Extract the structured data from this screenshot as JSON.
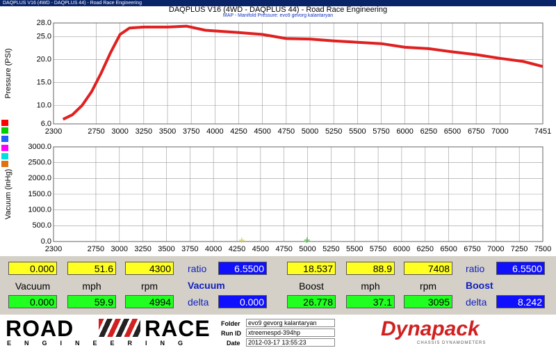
{
  "window_title": "DAQPLUS V16 (4WD - DAQPLUS 44) - Road Race Engineering",
  "chart_data": [
    {
      "type": "line",
      "title": "DAQPLUS V16 (4WD - DAQPLUS 44) - Road Race Engineering",
      "subtitle": "MAP - Manifold Pressure: evo9 gevorg kalantaryan",
      "y_label": "Pressure (PSI)",
      "x": [
        2400,
        2500,
        2600,
        2700,
        2800,
        2900,
        3000,
        3100,
        3250,
        3500,
        3700,
        3900,
        4250,
        4500,
        4750,
        5000,
        5250,
        5500,
        5750,
        6000,
        6250,
        6500,
        6750,
        7000,
        7250,
        7451
      ],
      "series": [
        {
          "color": "#e02020",
          "values": [
            7.0,
            8.0,
            10.0,
            13.0,
            17.0,
            21.5,
            25.5,
            26.9,
            27.1,
            27.1,
            27.3,
            26.4,
            25.9,
            25.5,
            24.6,
            24.5,
            24.1,
            23.8,
            23.5,
            22.7,
            22.4,
            21.7,
            21.1,
            20.3,
            19.6,
            18.5
          ]
        }
      ],
      "xlim": [
        2300,
        7451
      ],
      "xticks": [
        2300,
        2750,
        3000,
        3250,
        3500,
        3750,
        4000,
        4250,
        4500,
        4750,
        5000,
        5250,
        5500,
        5750,
        6000,
        6250,
        6500,
        6750,
        7000,
        7451
      ],
      "ylim": [
        6,
        28
      ],
      "yticks": [
        {
          "value": 6,
          "label": "6.0"
        },
        {
          "value": 10,
          "label": "10.0"
        },
        {
          "value": 15,
          "label": "15.0"
        },
        {
          "value": 20,
          "label": "20.0"
        },
        {
          "value": 25,
          "label": "25.0"
        },
        {
          "value": 28,
          "label": "28.0"
        }
      ],
      "grid": true
    },
    {
      "type": "scatter",
      "y_label": "Vacuum (inHg)",
      "x": [
        4300,
        4994
      ],
      "values": [
        0,
        0
      ],
      "colors": [
        "#d8d840",
        "#40c040"
      ],
      "xlim": [
        2300,
        7500
      ],
      "xticks": [
        2300,
        2750,
        3000,
        3250,
        3500,
        3750,
        4000,
        4250,
        4500,
        4750,
        5000,
        5250,
        5500,
        5750,
        6000,
        6250,
        6500,
        6750,
        7000,
        7250,
        7500
      ],
      "ylim": [
        0,
        3000
      ],
      "yticks": [
        {
          "value": 0,
          "label": "0.0"
        },
        {
          "value": 500,
          "label": "500.0"
        },
        {
          "value": 1000,
          "label": "1000.0"
        },
        {
          "value": 1500,
          "label": "1500.0"
        },
        {
          "value": 2000,
          "label": "2000.0"
        },
        {
          "value": 2500,
          "label": "2500.0"
        },
        {
          "value": 3000,
          "label": "3000.0"
        }
      ],
      "grid": true
    }
  ],
  "panel": {
    "groups": [
      {
        "top": [
          "0.000",
          "51.6",
          "4300"
        ],
        "ratio_label": "ratio",
        "ratio": "6.5500",
        "labels": [
          "Vacuum",
          "mph",
          "rpm"
        ],
        "title": "Vacuum",
        "bottom": [
          "0.000",
          "59.9",
          "4994"
        ],
        "delta_label": "delta",
        "delta": "0.000"
      },
      {
        "top": [
          "18.537",
          "88.9",
          "7408"
        ],
        "ratio_label": "ratio",
        "ratio": "6.5500",
        "labels": [
          "Boost",
          "mph",
          "rpm"
        ],
        "title": "Boost",
        "bottom": [
          "26.778",
          "37.1",
          "3095"
        ],
        "delta_label": "delta",
        "delta": "8.242"
      }
    ]
  },
  "footer": {
    "logo_left": "ROAD",
    "logo_right": "RACE",
    "logo_sub": "ENGINEERING",
    "folder_label": "Folder",
    "folder": "evo9 gevorg kalantaryan",
    "run_label": "Run ID",
    "run": "xtreemespd-394hp",
    "date_label": "Date",
    "date": "2012-03-17 13:55:23",
    "brand": "Dynapack",
    "brand_sub": "CHASSIS DYNAMOMETERS"
  }
}
